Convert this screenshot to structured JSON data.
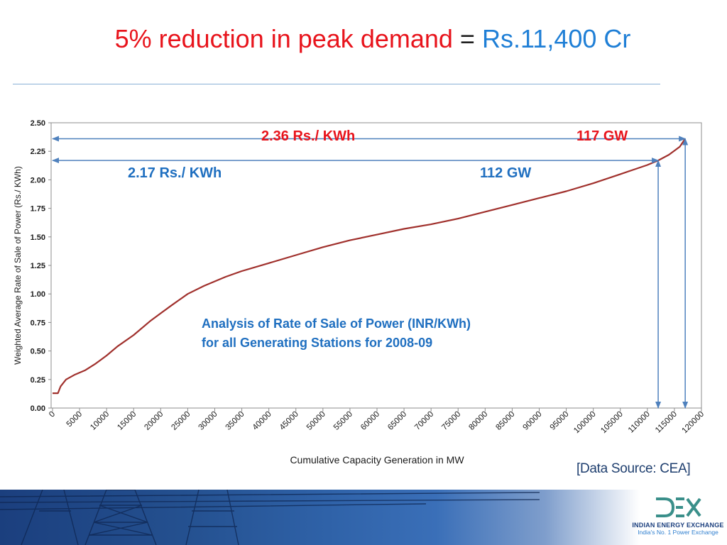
{
  "title": {
    "part1": "5% reduction in peak demand",
    "part2": " = ",
    "part3": "Rs.11,400 Cr"
  },
  "chart_data": {
    "type": "line",
    "title": "",
    "xlabel": "Cumulative Capacity Generation in MW",
    "ylabel": "Weighted Average Rate of Sale of Power (Rs./ KWh)",
    "xlim": [
      0,
      120000
    ],
    "ylim": [
      0,
      2.5
    ],
    "grid": false,
    "x_ticks": [
      "0",
      "5000",
      "10000",
      "15000",
      "20000",
      "25000",
      "30000",
      "35000",
      "40000",
      "45000",
      "50000",
      "55000",
      "60000",
      "65000",
      "70000",
      "75000",
      "80000",
      "85000",
      "90000",
      "95000",
      "100000",
      "105000",
      "110000",
      "115000",
      "120000"
    ],
    "y_ticks": [
      "0.00",
      "0.25",
      "0.50",
      "0.75",
      "1.00",
      "1.25",
      "1.50",
      "1.75",
      "2.00",
      "2.25",
      "2.50"
    ],
    "series": [
      {
        "name": "",
        "color": "#a0302c",
        "x": [
          0,
          1000,
          1500,
          2500,
          4000,
          6000,
          8000,
          10000,
          12000,
          15000,
          18000,
          20000,
          22000,
          25000,
          28000,
          30000,
          32000,
          35000,
          40000,
          45000,
          50000,
          55000,
          60000,
          65000,
          70000,
          75000,
          80000,
          85000,
          90000,
          95000,
          100000,
          105000,
          110000,
          112000,
          114000,
          116000,
          117000
        ],
        "y": [
          0.13,
          0.13,
          0.19,
          0.25,
          0.29,
          0.33,
          0.39,
          0.46,
          0.54,
          0.64,
          0.76,
          0.83,
          0.9,
          1.0,
          1.07,
          1.11,
          1.15,
          1.2,
          1.27,
          1.34,
          1.41,
          1.47,
          1.52,
          1.57,
          1.61,
          1.66,
          1.72,
          1.78,
          1.84,
          1.9,
          1.97,
          2.05,
          2.13,
          2.17,
          2.22,
          2.29,
          2.36
        ]
      }
    ],
    "annotations": {
      "rate_high": "2.36 Rs./ KWh",
      "cap_high": "117 GW",
      "rate_low": "2.17 Rs./ KWh",
      "cap_low": "112 GW",
      "analysis_line1": "Analysis of Rate of Sale of Power (INR/KWh)",
      "analysis_line2": "for all Generating Stations for 2008-09"
    },
    "markers": {
      "high": {
        "x": 117000,
        "y": 2.36
      },
      "low": {
        "x": 112000,
        "y": 2.17
      }
    }
  },
  "source": "[Data Source: CEA]",
  "footer": {
    "brand": "INDIAN ENERGY EXCHANGE",
    "tagline": "India's No. 1 Power Exchange"
  },
  "colors": {
    "title_red": "#e8141c",
    "title_blue": "#1f7fd6",
    "curve": "#a0302c",
    "arrow": "#4f81bd",
    "annotation_red": "#e8141c",
    "annotation_blue": "#1f6fc0"
  }
}
